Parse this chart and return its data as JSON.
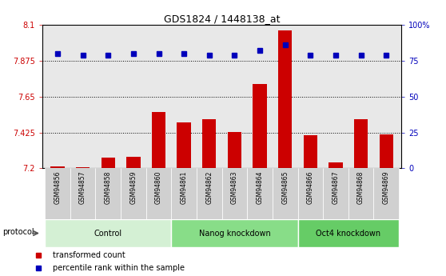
{
  "title": "GDS1824 / 1448138_at",
  "samples": [
    "GSM94856",
    "GSM94857",
    "GSM94858",
    "GSM94859",
    "GSM94860",
    "GSM94861",
    "GSM94862",
    "GSM94863",
    "GSM94864",
    "GSM94865",
    "GSM94866",
    "GSM94867",
    "GSM94868",
    "GSM94869"
  ],
  "bar_values": [
    7.21,
    7.205,
    7.265,
    7.27,
    7.555,
    7.487,
    7.51,
    7.43,
    7.73,
    8.065,
    7.41,
    7.235,
    7.51,
    7.415
  ],
  "dot_values": [
    80,
    79,
    79,
    80,
    80,
    80,
    79,
    79,
    82,
    86,
    79,
    79,
    79,
    79
  ],
  "bar_color": "#cc0000",
  "dot_color": "#0000bb",
  "ylim_left": [
    7.2,
    8.1
  ],
  "ylim_right": [
    0,
    100
  ],
  "yticks_left": [
    7.2,
    7.425,
    7.65,
    7.875,
    8.1
  ],
  "yticks_right": [
    0,
    25,
    50,
    75,
    100
  ],
  "ytick_labels_left": [
    "7.2",
    "7.425",
    "7.65",
    "7.875",
    "8.1"
  ],
  "ytick_labels_right": [
    "0",
    "25",
    "50",
    "75",
    "100%"
  ],
  "hlines": [
    7.425,
    7.65,
    7.875
  ],
  "groups": [
    {
      "label": "Control",
      "start": 0,
      "end": 4,
      "color": "#d4f0d4"
    },
    {
      "label": "Nanog knockdown",
      "start": 5,
      "end": 9,
      "color": "#88dd88"
    },
    {
      "label": "Oct4 knockdown",
      "start": 10,
      "end": 13,
      "color": "#66cc66"
    }
  ],
  "protocol_label": "protocol",
  "legend": [
    {
      "label": "transformed count",
      "color": "#cc0000"
    },
    {
      "label": "percentile rank within the sample",
      "color": "#0000bb"
    }
  ],
  "left_color": "#cc0000",
  "right_color": "#0000bb",
  "bg_plot": "#e8e8e8",
  "xtick_bg": "#d0d0d0",
  "bar_width": 0.55
}
